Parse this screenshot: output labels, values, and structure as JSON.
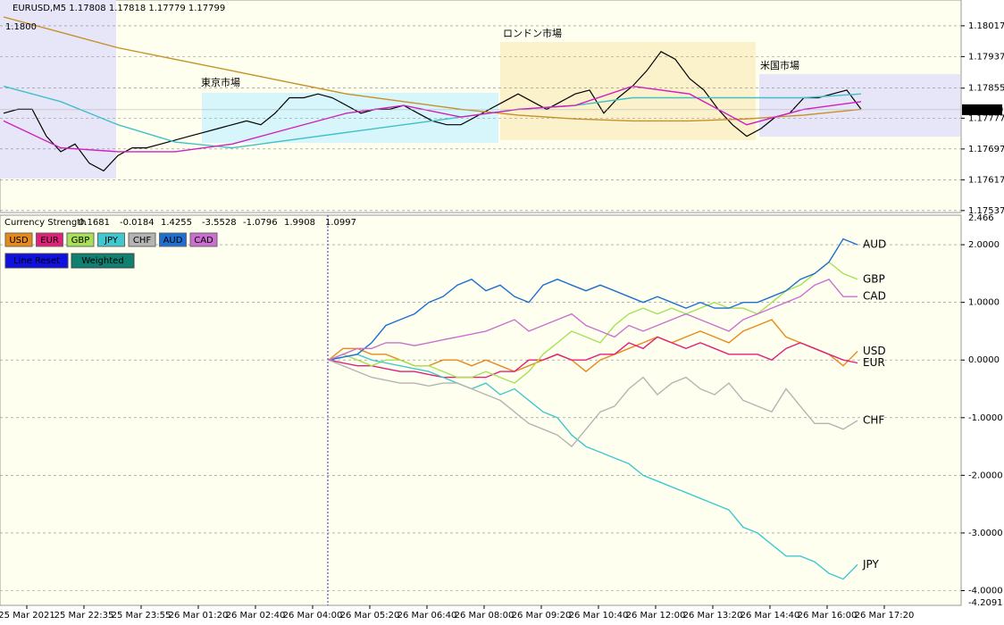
{
  "x_labels": [
    "25 Mar 2021",
    "25 Mar 22:35",
    "25 Mar 23:55",
    "26 Mar 01:20",
    "26 Mar 02:40",
    "26 Mar 04:00",
    "26 Mar 05:20",
    "26 Mar 06:40",
    "26 Mar 08:00",
    "26 Mar 09:20",
    "26 Mar 10:40",
    "26 Mar 12:00",
    "26 Mar 13:20",
    "26 Mar 14:40",
    "26 Mar 16:00",
    "26 Mar 17:20"
  ],
  "chart_data": [
    {
      "type": "line",
      "title": "EURUSD,M5  1.17808 1.17818 1.17779 1.17799",
      "level": {
        "value": 1.18,
        "label": "1.1800"
      },
      "current_price": 1.17799,
      "annotations": [
        "東京市場",
        "ロンドン市場",
        "米国市場"
      ],
      "ylim": [
        1.17532,
        1.18084
      ],
      "yticks": [
        1.18017,
        1.17937,
        1.17855,
        1.17777,
        1.17697,
        1.17617,
        1.17537
      ],
      "series": [
        {
          "color": "#000000",
          "values": [
            1.1779,
            1.178,
            1.178,
            1.1773,
            1.1769,
            1.1771,
            1.1766,
            1.1764,
            1.1768,
            1.177,
            1.177,
            1.1771,
            1.1772,
            1.1773,
            1.1774,
            1.1775,
            1.1776,
            1.1777,
            1.1776,
            1.1779,
            1.1783,
            1.1783,
            1.1784,
            1.1783,
            1.1781,
            1.1779,
            1.178,
            1.178,
            1.1781,
            1.1779,
            1.1777,
            1.1776,
            1.1776,
            1.1778,
            1.178,
            1.1782,
            1.1784,
            1.1782,
            1.178,
            1.1782,
            1.1784,
            1.1785,
            1.1779,
            1.1783,
            1.1786,
            1.179,
            1.1795,
            1.1793,
            1.1788,
            1.1785,
            1.178,
            1.1776,
            1.1773,
            1.1775,
            1.1778,
            1.1779,
            1.1783,
            1.1783,
            1.1784,
            1.1785,
            1.178
          ]
        },
        {
          "color": "#40c0c8",
          "values": [
            1.1786,
            1.1782,
            1.1776,
            1.17715,
            1.177,
            1.1772,
            1.1774,
            1.1776,
            1.1778,
            1.178,
            1.1781,
            1.1783,
            1.1783,
            1.1783,
            1.1783,
            1.1784
          ]
        },
        {
          "color": "#c89028",
          "values": [
            1.1804,
            1.18,
            1.1796,
            1.1793,
            1.179,
            1.1787,
            1.1784,
            1.1782,
            1.178,
            1.17785,
            1.17775,
            1.1777,
            1.1777,
            1.17775,
            1.17785,
            1.178
          ]
        },
        {
          "color": "#d020c0",
          "values": [
            1.1777,
            1.177,
            1.1769,
            1.1769,
            1.1771,
            1.1775,
            1.1779,
            1.1781,
            1.1778,
            1.178,
            1.1781,
            1.1786,
            1.1784,
            1.1776,
            1.178,
            1.1782
          ]
        }
      ]
    },
    {
      "type": "line",
      "title": "Currency Strength",
      "header_values": [
        0.1681,
        -0.0184,
        1.4255,
        -3.5528,
        -1.0796,
        1.9908,
        1.0997
      ],
      "buttons": [
        "Line Reset",
        "Weighted"
      ],
      "ylim": [
        -4.2091,
        2.466
      ],
      "yticks": [
        {
          "value": 2,
          "label": "2.0000"
        },
        {
          "value": 1,
          "label": "1.0000"
        },
        {
          "value": 0,
          "label": "0.0000"
        },
        {
          "value": -1,
          "label": "-1.0000"
        },
        {
          "value": -2,
          "label": "-2.0000"
        },
        {
          "value": -3,
          "label": "-3.0000"
        },
        {
          "value": -4,
          "label": "-4.0000"
        }
      ],
      "series": [
        {
          "name": "USD",
          "color": "#e88a1a",
          "values": [
            0,
            0.2,
            0.2,
            0.1,
            0.1,
            0,
            -0.1,
            -0.1,
            0,
            0,
            -0.1,
            0,
            -0.1,
            -0.2,
            -0.1,
            0,
            0.1,
            0,
            -0.2,
            0,
            0.1,
            0.2,
            0.3,
            0.4,
            0.3,
            0.4,
            0.5,
            0.4,
            0.3,
            0.5,
            0.6,
            0.7,
            0.4,
            0.3,
            0.2,
            0.1,
            -0.1,
            0.15
          ]
        },
        {
          "name": "EUR",
          "color": "#e0207a",
          "values": [
            0,
            -0.05,
            -0.1,
            -0.1,
            -0.15,
            -0.2,
            -0.2,
            -0.25,
            -0.3,
            -0.3,
            -0.3,
            -0.3,
            -0.2,
            -0.2,
            0,
            0,
            0.1,
            0,
            0,
            0.1,
            0.1,
            0.3,
            0.2,
            0.4,
            0.3,
            0.2,
            0.3,
            0.2,
            0.1,
            0.1,
            0.1,
            0,
            0.2,
            0.3,
            0.2,
            0.1,
            0,
            -0.05
          ]
        },
        {
          "name": "GBP",
          "color": "#a8e05a",
          "values": [
            0,
            0.1,
            0,
            -0.1,
            0,
            0,
            -0.1,
            -0.1,
            -0.2,
            -0.3,
            -0.3,
            -0.2,
            -0.3,
            -0.4,
            -0.2,
            0.1,
            0.3,
            0.5,
            0.4,
            0.3,
            0.6,
            0.8,
            0.9,
            0.8,
            0.9,
            0.8,
            0.9,
            1,
            0.9,
            0.9,
            0.8,
            1,
            1.2,
            1.3,
            1.5,
            1.7,
            1.5,
            1.4
          ]
        },
        {
          "name": "JPY",
          "color": "#40c8d0",
          "values": [
            0,
            0.05,
            0.1,
            0,
            -0.05,
            -0.1,
            -0.15,
            -0.2,
            -0.3,
            -0.4,
            -0.5,
            -0.4,
            -0.6,
            -0.5,
            -0.7,
            -0.9,
            -1,
            -1.3,
            -1.5,
            -1.6,
            -1.7,
            -1.8,
            -2,
            -2.1,
            -2.2,
            -2.3,
            -2.4,
            -2.5,
            -2.6,
            -2.9,
            -3,
            -3.2,
            -3.4,
            -3.4,
            -3.5,
            -3.7,
            -3.8,
            -3.55
          ]
        },
        {
          "name": "CHF",
          "color": "#b4b4b4",
          "values": [
            0,
            -0.1,
            -0.2,
            -0.3,
            -0.35,
            -0.4,
            -0.4,
            -0.45,
            -0.4,
            -0.4,
            -0.5,
            -0.6,
            -0.7,
            -0.9,
            -1.1,
            -1.2,
            -1.3,
            -1.5,
            -1.2,
            -0.9,
            -0.8,
            -0.5,
            -0.3,
            -0.6,
            -0.4,
            -0.3,
            -0.5,
            -0.6,
            -0.4,
            -0.7,
            -0.8,
            -0.9,
            -0.5,
            -0.8,
            -1.1,
            -1.1,
            -1.2,
            -1.05
          ]
        },
        {
          "name": "AUD",
          "color": "#1e6fd0",
          "values": [
            0,
            0.05,
            0.1,
            0.3,
            0.6,
            0.7,
            0.8,
            1,
            1.1,
            1.3,
            1.4,
            1.2,
            1.3,
            1.1,
            1,
            1.3,
            1.4,
            1.3,
            1.2,
            1.3,
            1.2,
            1.1,
            1,
            1.1,
            1,
            0.9,
            1,
            0.9,
            0.9,
            1,
            1,
            1.1,
            1.2,
            1.4,
            1.5,
            1.7,
            2.1,
            2
          ]
        },
        {
          "name": "CAD",
          "color": "#cc70d0",
          "values": [
            0,
            0.1,
            0.2,
            0.2,
            0.3,
            0.3,
            0.25,
            0.3,
            0.35,
            0.4,
            0.45,
            0.5,
            0.6,
            0.7,
            0.5,
            0.6,
            0.7,
            0.8,
            0.6,
            0.5,
            0.4,
            0.6,
            0.5,
            0.6,
            0.7,
            0.8,
            0.7,
            0.6,
            0.5,
            0.7,
            0.8,
            0.9,
            1,
            1.1,
            1.3,
            1.4,
            1.1,
            1.1
          ]
        }
      ]
    }
  ]
}
